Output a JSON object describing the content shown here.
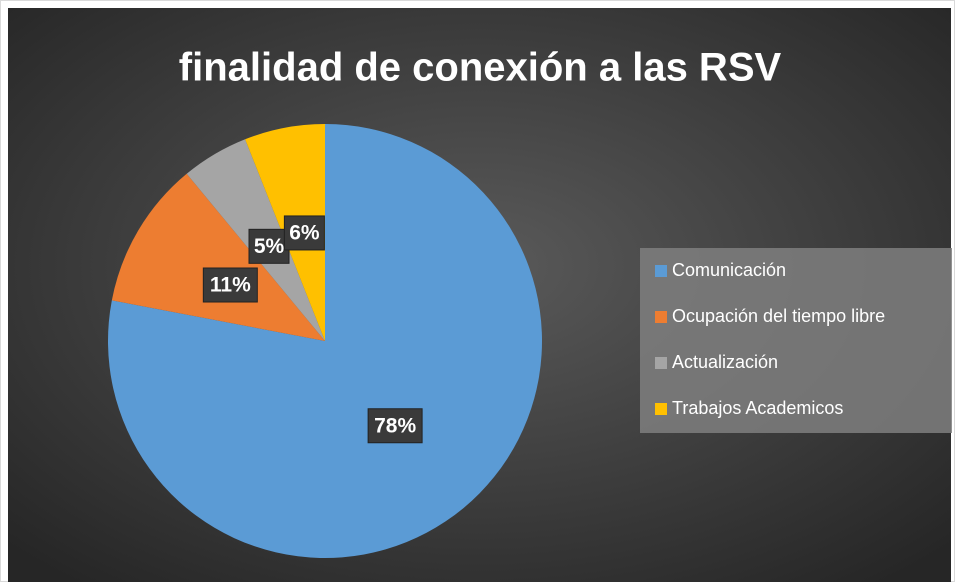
{
  "chart_data": {
    "type": "pie",
    "title": "finalidad de conexión a las RSV",
    "categories": [
      "Comunicación",
      "Ocupación del tiempo libre",
      "Actualización",
      "Trabajos Academicos"
    ],
    "values": [
      78,
      11,
      5,
      6
    ],
    "value_labels": [
      "78%",
      "11%",
      "5%",
      "6%"
    ],
    "colors": [
      "#5b9bd5",
      "#ed7d31",
      "#a5a5a5",
      "#ffc000"
    ],
    "legend": "right"
  }
}
